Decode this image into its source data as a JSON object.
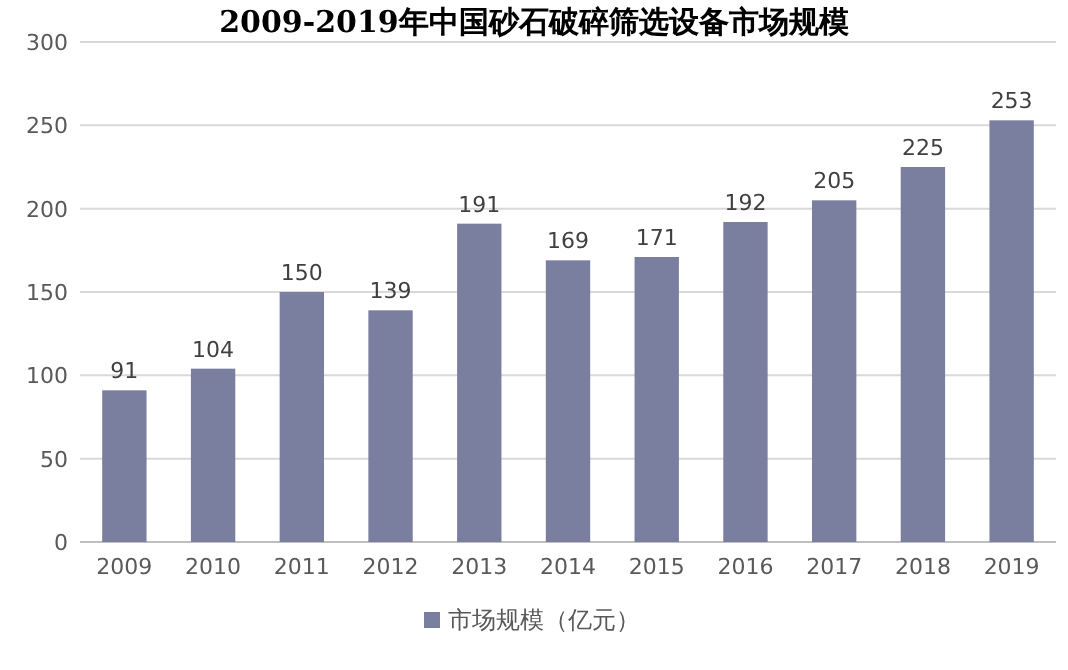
{
  "chart_data": {
    "type": "bar",
    "title": "2009-2019年中国砂石破碎筛选设备市场规模",
    "categories": [
      "2009",
      "2010",
      "2011",
      "2012",
      "2013",
      "2014",
      "2015",
      "2016",
      "2017",
      "2018",
      "2019"
    ],
    "series": [
      {
        "name": "市场规模（亿元）",
        "color": "#7a7fa0",
        "values": [
          91,
          104,
          150,
          139,
          191,
          169,
          171,
          192,
          205,
          225,
          253
        ]
      }
    ],
    "ylim": [
      0,
      300
    ],
    "yticks": [
      0,
      50,
      100,
      150,
      200,
      250,
      300
    ],
    "grid": "y",
    "legend": "bottom",
    "data_labels": true
  }
}
